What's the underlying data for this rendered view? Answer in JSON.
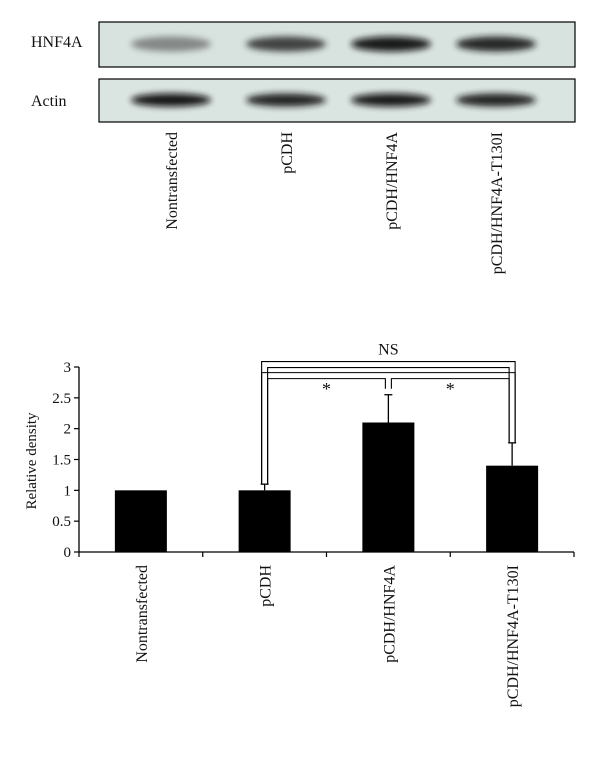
{
  "blot": {
    "rows": [
      {
        "label": "HNF4A",
        "intensity": [
          0.55,
          0.8,
          0.92,
          0.88
        ]
      },
      {
        "label": "Actin",
        "intensity": [
          0.95,
          0.9,
          0.92,
          0.9
        ]
      }
    ],
    "lanes": [
      "Nontransfected",
      "pCDH",
      "pCDH/HNF4A",
      "pCDH/HNF4A-T130I"
    ]
  },
  "chart_data": {
    "type": "bar",
    "categories": [
      "Nontransfected",
      "pCDH",
      "pCDH/HNF4A",
      "pCDH/HNF4A-T130I"
    ],
    "values": [
      1.0,
      1.0,
      2.1,
      1.4
    ],
    "errors": [
      0.0,
      0.1,
      0.45,
      0.37
    ],
    "ylabel": "Relative density",
    "xlabel": "",
    "ylim": [
      0,
      3
    ],
    "yticks": [
      "0",
      "0.5",
      "1",
      "1.5",
      "2",
      "2.5",
      "3"
    ],
    "bar_color": "#000000",
    "grid": false,
    "significance": [
      {
        "label": "*",
        "from": "pCDH",
        "to": "pCDH/HNF4A"
      },
      {
        "label": "*",
        "from": "pCDH/HNF4A",
        "to": "pCDH/HNF4A-T130I"
      },
      {
        "label": "NS",
        "from": "pCDH",
        "to": "pCDH/HNF4A-T130I"
      }
    ]
  }
}
